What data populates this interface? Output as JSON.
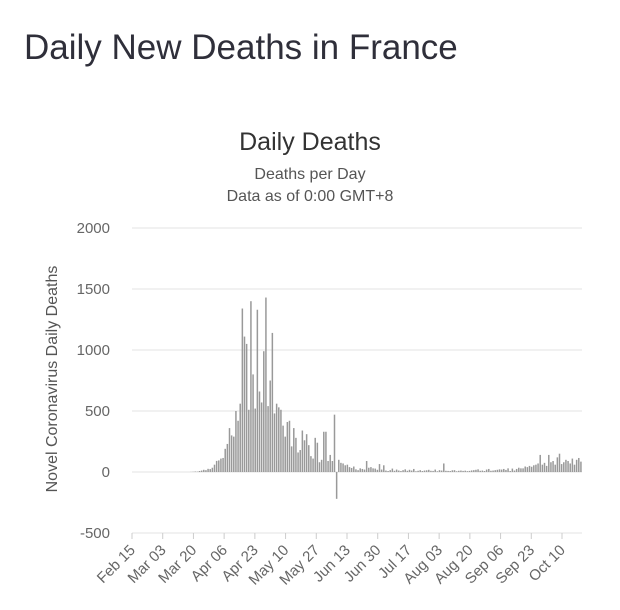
{
  "page": {
    "title": "Daily New Deaths in France"
  },
  "chart_data": {
    "type": "bar",
    "title": "Daily Deaths",
    "subtitle": "Deaths per Day",
    "subtitle2": "Data as of 0:00 GMT+8",
    "xlabel": "",
    "ylabel": "Novel Coronavirus Daily Deaths",
    "ylim": [
      -500,
      2000
    ],
    "yticks": [
      2000,
      1500,
      1000,
      500,
      0,
      -500
    ],
    "grid": true,
    "legend": "none",
    "bar_color": "#999999",
    "x_start": "Feb 15",
    "x_ticks": [
      "Feb 15",
      "Mar 03",
      "Mar 20",
      "Apr 06",
      "Apr 23",
      "May 10",
      "May 27",
      "Jun 13",
      "Jun 30",
      "Jul 17",
      "Aug 03",
      "Aug 20",
      "Sep 06",
      "Sep 23",
      "Oct 10"
    ],
    "values": [
      0,
      0,
      0,
      0,
      0,
      0,
      0,
      0,
      0,
      0,
      0,
      0,
      0,
      0,
      0,
      0,
      0,
      0,
      0,
      0,
      0,
      0,
      0,
      0,
      0,
      0,
      0,
      1,
      2,
      4,
      3,
      8,
      12,
      18,
      15,
      26,
      24,
      35,
      60,
      91,
      95,
      110,
      115,
      190,
      230,
      360,
      300,
      290,
      500,
      420,
      560,
      1340,
      1110,
      1050,
      510,
      1400,
      800,
      520,
      1330,
      660,
      570,
      990,
      1430,
      540,
      750,
      1140,
      480,
      560,
      530,
      510,
      380,
      290,
      410,
      420,
      210,
      360,
      280,
      160,
      180,
      340,
      260,
      310,
      220,
      130,
      110,
      280,
      240,
      80,
      100,
      330,
      330,
      90,
      140,
      90,
      470,
      -220,
      100,
      75,
      70,
      55,
      60,
      40,
      33,
      45,
      22,
      15,
      30,
      25,
      20,
      90,
      35,
      40,
      30,
      28,
      18,
      65,
      20,
      55,
      12,
      8,
      15,
      28,
      10,
      20,
      12,
      8,
      15,
      22,
      10,
      18,
      12,
      25,
      6,
      10,
      15,
      8,
      12,
      14,
      18,
      10,
      9,
      20,
      6,
      15,
      12,
      70,
      10,
      9,
      8,
      14,
      15,
      6,
      10,
      12,
      9,
      11,
      7,
      9,
      13,
      15,
      18,
      22,
      10,
      12,
      8,
      20,
      25,
      10,
      12,
      15,
      18,
      22,
      20,
      25,
      17,
      30,
      8,
      28,
      12,
      25,
      35,
      30,
      30,
      45,
      40,
      50,
      43,
      55,
      60,
      70,
      140,
      60,
      75,
      50,
      140,
      80,
      90,
      60,
      120,
      150,
      65,
      80,
      100,
      90,
      70,
      110,
      60,
      100,
      115,
      85
    ]
  }
}
